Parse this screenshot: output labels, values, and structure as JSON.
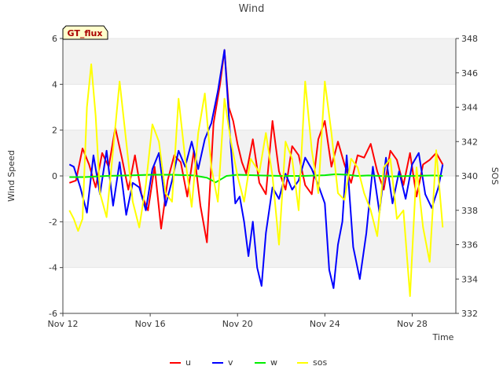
{
  "chart_data": {
    "type": "line",
    "title": "Wind",
    "xlabel": "Time",
    "ylabel": "Wind Speed",
    "y2label": "SOS",
    "badge": "GT_flux",
    "xlim": [
      0,
      18
    ],
    "ylim": [
      -6,
      6
    ],
    "y2lim": [
      332,
      348
    ],
    "x_ticks": [
      {
        "pos": 0,
        "label": "Nov 12"
      },
      {
        "pos": 4,
        "label": "Nov 16"
      },
      {
        "pos": 8,
        "label": "Nov 20"
      },
      {
        "pos": 12,
        "label": "Nov 24"
      },
      {
        "pos": 16,
        "label": "Nov 28"
      }
    ],
    "y_ticks": [
      -6,
      -4,
      -2,
      0,
      2,
      4,
      6
    ],
    "y2_ticks": [
      332,
      334,
      336,
      338,
      340,
      342,
      344,
      346,
      348
    ],
    "bands": [
      [
        4,
        6
      ],
      [
        0,
        2
      ],
      [
        -4,
        -2
      ]
    ],
    "legend_position": "bottom",
    "series": [
      {
        "name": "u",
        "color": "#ff0000",
        "axis": "left",
        "x": [
          0.3,
          0.6,
          0.9,
          1.2,
          1.5,
          1.8,
          2.1,
          2.4,
          2.7,
          3.0,
          3.3,
          3.6,
          3.9,
          4.2,
          4.5,
          4.8,
          5.1,
          5.4,
          5.7,
          6.0,
          6.3,
          6.6,
          6.9,
          7.2,
          7.4,
          7.6,
          7.8,
          8.0,
          8.2,
          8.4,
          8.7,
          9.0,
          9.3,
          9.6,
          9.9,
          10.2,
          10.5,
          10.8,
          11.1,
          11.4,
          11.7,
          12.0,
          12.3,
          12.6,
          12.9,
          13.2,
          13.5,
          13.8,
          14.1,
          14.4,
          14.7,
          15.0,
          15.3,
          15.6,
          15.9,
          16.2,
          16.5,
          16.8,
          17.1,
          17.4
        ],
        "values": [
          -0.3,
          -0.2,
          1.2,
          0.5,
          -0.5,
          1.0,
          0.4,
          2.1,
          0.8,
          -0.6,
          0.9,
          -0.8,
          -1.5,
          0.4,
          -2.3,
          -0.2,
          0.9,
          0.6,
          -0.9,
          1.1,
          -1.3,
          -2.9,
          2.3,
          4.0,
          5.5,
          3.0,
          2.4,
          1.4,
          0.6,
          0.1,
          1.6,
          -0.3,
          -0.8,
          2.4,
          0.2,
          -0.6,
          1.3,
          0.9,
          -0.4,
          -0.8,
          1.6,
          2.4,
          0.4,
          1.5,
          0.5,
          -0.3,
          0.9,
          0.8,
          1.4,
          0.2,
          -0.6,
          1.1,
          0.7,
          -0.4,
          1.0,
          -0.9,
          0.5,
          0.7,
          1.0,
          0.5
        ]
      },
      {
        "name": "v",
        "color": "#0000ff",
        "axis": "left",
        "x": [
          0.3,
          0.5,
          0.8,
          1.1,
          1.4,
          1.7,
          2.0,
          2.3,
          2.6,
          2.9,
          3.2,
          3.5,
          3.8,
          4.1,
          4.4,
          4.7,
          5.0,
          5.3,
          5.6,
          5.9,
          6.2,
          6.5,
          6.8,
          7.1,
          7.4,
          7.7,
          7.9,
          8.1,
          8.3,
          8.5,
          8.7,
          8.9,
          9.1,
          9.3,
          9.6,
          9.9,
          10.2,
          10.5,
          10.8,
          11.1,
          11.4,
          11.7,
          12.0,
          12.2,
          12.4,
          12.6,
          12.8,
          13.0,
          13.3,
          13.6,
          13.9,
          14.2,
          14.5,
          14.8,
          15.1,
          15.4,
          15.7,
          16.0,
          16.3,
          16.6,
          16.9,
          17.2,
          17.4
        ],
        "values": [
          0.5,
          0.4,
          -0.5,
          -1.6,
          0.9,
          -0.8,
          1.1,
          -1.3,
          0.6,
          -1.7,
          -0.3,
          -0.5,
          -1.5,
          0.3,
          1.0,
          -1.3,
          -0.2,
          1.1,
          0.4,
          1.5,
          0.3,
          1.6,
          2.3,
          3.7,
          5.5,
          1.2,
          -1.2,
          -0.9,
          -2.0,
          -3.5,
          -2.0,
          -4.0,
          -4.8,
          -2.5,
          -0.5,
          -1.0,
          0.1,
          -0.6,
          -0.2,
          0.8,
          0.3,
          -0.4,
          -1.2,
          -4.1,
          -4.9,
          -3.0,
          -2.0,
          0.9,
          -3.1,
          -4.5,
          -2.5,
          0.4,
          -1.6,
          0.8,
          -1.2,
          0.2,
          -1.0,
          0.5,
          1.0,
          -0.8,
          -1.4,
          -0.5,
          0.5
        ]
      },
      {
        "name": "w",
        "color": "#00ee00",
        "axis": "left",
        "x": [
          0.3,
          1.0,
          2.0,
          3.0,
          4.0,
          5.0,
          6.0,
          6.6,
          7.0,
          7.5,
          8.0,
          9.0,
          10.0,
          11.0,
          12.0,
          12.5,
          13.0,
          13.5,
          14.0,
          15.0,
          16.0,
          17.0,
          17.4
        ],
        "values": [
          -0.05,
          -0.05,
          0.0,
          0.02,
          0.05,
          0.05,
          0.02,
          -0.08,
          -0.28,
          0.0,
          0.05,
          0.02,
          0.0,
          0.0,
          0.03,
          0.08,
          0.05,
          0.0,
          0.02,
          -0.02,
          0.0,
          0.02,
          0.0
        ]
      },
      {
        "name": "sos",
        "color": "#ffff00",
        "axis": "right",
        "x": [
          0.3,
          0.5,
          0.7,
          0.9,
          1.1,
          1.3,
          1.5,
          1.7,
          2.0,
          2.3,
          2.6,
          2.9,
          3.2,
          3.5,
          3.8,
          4.1,
          4.4,
          4.7,
          5.0,
          5.3,
          5.6,
          5.9,
          6.2,
          6.5,
          6.8,
          7.1,
          7.4,
          7.7,
          8.0,
          8.3,
          8.6,
          9.0,
          9.3,
          9.6,
          9.9,
          10.2,
          10.5,
          10.8,
          11.1,
          11.4,
          11.7,
          12.0,
          12.3,
          12.6,
          12.9,
          13.2,
          13.5,
          13.8,
          14.1,
          14.4,
          14.7,
          15.0,
          15.3,
          15.6,
          15.9,
          16.2,
          16.5,
          16.8,
          17.1,
          17.4
        ],
        "values": [
          338.0,
          337.5,
          336.8,
          337.5,
          344.0,
          346.5,
          343.5,
          339.0,
          337.6,
          341.5,
          345.5,
          342.0,
          338.5,
          337.0,
          339.5,
          343.0,
          342.0,
          339.0,
          338.5,
          344.5,
          341.0,
          338.2,
          342.5,
          344.8,
          340.5,
          338.5,
          344.5,
          342.0,
          340.0,
          338.5,
          341.0,
          340.2,
          342.5,
          340.0,
          336.0,
          342.0,
          341.0,
          338.0,
          345.5,
          341.5,
          339.0,
          345.5,
          342.5,
          339.0,
          338.6,
          341.0,
          340.5,
          339.0,
          338.0,
          336.5,
          340.5,
          341.0,
          337.5,
          338.0,
          333.0,
          340.5,
          337.0,
          335.0,
          341.5,
          337.0
        ]
      }
    ]
  }
}
